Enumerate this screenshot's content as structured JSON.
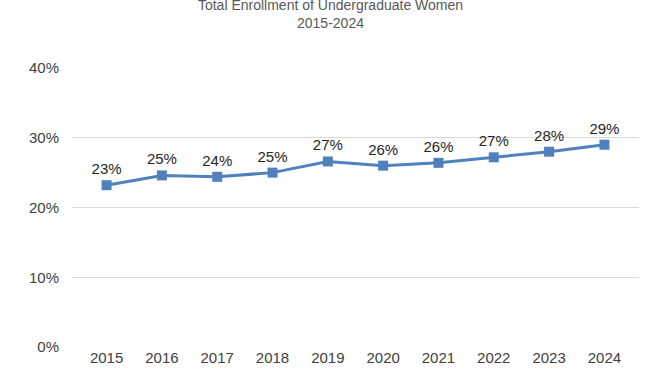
{
  "chart_data": {
    "type": "line",
    "title": "Total Enrollment of Undergraduate Women",
    "subtitle": "2015-2024",
    "categories": [
      "2015",
      "2016",
      "2017",
      "2018",
      "2019",
      "2020",
      "2021",
      "2022",
      "2023",
      "2024"
    ],
    "values": [
      23.2,
      24.6,
      24.4,
      25.0,
      26.6,
      26.0,
      26.4,
      27.2,
      28.0,
      29.0
    ],
    "value_labels": [
      "23%",
      "25%",
      "24%",
      "25%",
      "27%",
      "26%",
      "26%",
      "27%",
      "28%",
      "29%"
    ],
    "data_labels": true,
    "color": "#4f81bd",
    "marker": "square",
    "line_style": "solid",
    "ylim": [
      0,
      40
    ],
    "yticks": [
      {
        "value": 0,
        "label": "0%"
      },
      {
        "value": 10,
        "label": "10%"
      },
      {
        "value": 20,
        "label": "20%"
      },
      {
        "value": 30,
        "label": "30%"
      },
      {
        "value": 40,
        "label": "40%"
      }
    ],
    "grid": true,
    "legend": false
  }
}
